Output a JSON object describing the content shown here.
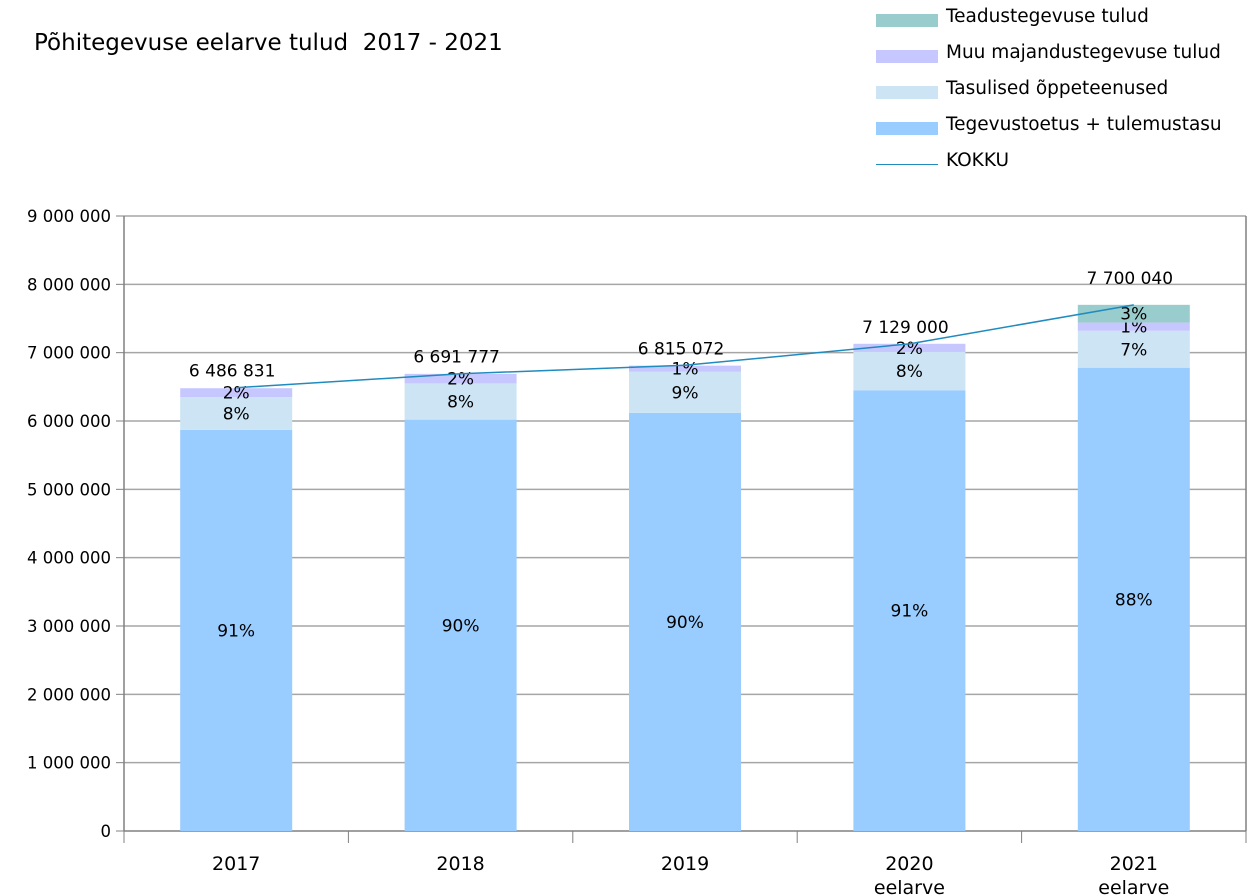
{
  "chart_data": {
    "type": "bar",
    "title": "Põhitegevuse eelarve tulud  2017 - 2021",
    "categories": [
      [
        "2017"
      ],
      [
        "2018"
      ],
      [
        "2019"
      ],
      [
        "2020",
        "eelarve"
      ],
      [
        "2021",
        "eelarve"
      ]
    ],
    "ylim": [
      0,
      9000000
    ],
    "yticks": [
      0,
      1000000,
      2000000,
      3000000,
      4000000,
      5000000,
      6000000,
      7000000,
      8000000,
      9000000
    ],
    "ytick_labels": [
      "0",
      "1 000 000",
      "2 000 000",
      "3 000 000",
      "4 000 000",
      "5 000 000",
      "6 000 000",
      "7 000 000",
      "8 000 000",
      "9 000 000"
    ],
    "grid": true,
    "legend_position": "top-right",
    "series": [
      {
        "name": "Tegevustoetus + tulemustasu",
        "color": "#99ccff",
        "values": [
          5870000,
          6020000,
          6120000,
          6450000,
          6780000
        ],
        "labels": [
          "91%",
          "90%",
          "90%",
          "91%",
          "88%"
        ]
      },
      {
        "name": "Tasulised õppeteenused",
        "color": "#cce4f4",
        "values": [
          480000,
          530000,
          600000,
          560000,
          540000
        ],
        "labels": [
          "8%",
          "8%",
          "9%",
          "8%",
          "7%"
        ]
      },
      {
        "name": "Muu majandustegevuse tulud",
        "color": "#c7c7ff",
        "values": [
          130000,
          140000,
          90000,
          120000,
          120000
        ],
        "labels": [
          "2%",
          "2%",
          "1%",
          "2%",
          "1%"
        ]
      },
      {
        "name": "Teadustegevuse tulud",
        "color": "#99cccc",
        "values": [
          0,
          0,
          0,
          0,
          260000
        ],
        "labels": [
          "",
          "",
          "",
          "",
          "3%"
        ]
      }
    ],
    "total": {
      "name": "KOKKU",
      "color": "#1f8bbf",
      "type": "line",
      "values": [
        6486831,
        6691777,
        6815072,
        7129000,
        7700040
      ],
      "labels": [
        "6 486 831",
        "6 691 777",
        "6 815 072",
        "7 129 000",
        "7 700 040"
      ]
    },
    "legend_order": [
      "Teadustegevuse tulud",
      "Muu majandustegevuse tulud",
      "Tasulised õppeteenused",
      "Tegevustoetus + tulemustasu",
      "KOKKU"
    ]
  }
}
